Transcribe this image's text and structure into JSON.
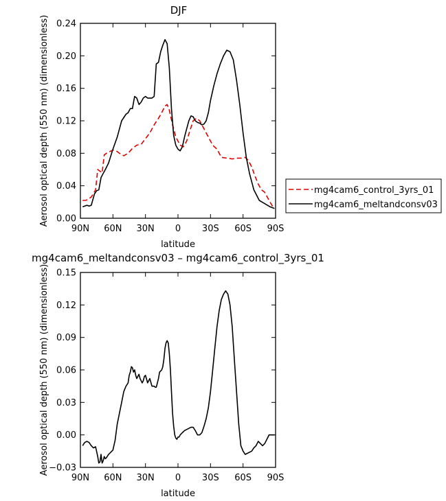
{
  "chart_data": [
    {
      "type": "line",
      "title": "DJF",
      "xlabel": "latitude",
      "ylabel": "Aerosol optical depth (550 nm) (dimensionless)",
      "xlim": [
        90,
        -90
      ],
      "ylim": [
        0,
        0.24
      ],
      "xticks": [
        90,
        60,
        30,
        0,
        -30,
        -60,
        -90
      ],
      "xtick_labels": [
        "90N",
        "60N",
        "30N",
        "0",
        "30S",
        "60S",
        "90S"
      ],
      "yticks": [
        0,
        0.04,
        0.08,
        0.12,
        0.16,
        0.2,
        0.24
      ],
      "ytick_labels": [
        "0.00",
        "0.04",
        "0.08",
        "0.12",
        "0.16",
        "0.20",
        "0.24"
      ],
      "legend_position": "outside-right",
      "series": [
        {
          "name": "mg4cam6_control_3yrs_01",
          "color": "#e00000",
          "dash": "dashed",
          "x": [
            88,
            85,
            80,
            76,
            74,
            72,
            70,
            68,
            66,
            63,
            60,
            57,
            54,
            50,
            46,
            42,
            38,
            34,
            30,
            26,
            22,
            18,
            15,
            12,
            10,
            8,
            5,
            2,
            0,
            -2,
            -5,
            -8,
            -11,
            -14,
            -17,
            -20,
            -24,
            -28,
            -32,
            -36,
            -40,
            -45,
            -50,
            -55,
            -60,
            -62,
            -65,
            -68,
            -71,
            -74,
            -77,
            -80,
            -84,
            -88
          ],
          "y": [
            0.022,
            0.022,
            0.026,
            0.035,
            0.06,
            0.058,
            0.056,
            0.078,
            0.08,
            0.082,
            0.084,
            0.083,
            0.08,
            0.077,
            0.08,
            0.086,
            0.09,
            0.091,
            0.098,
            0.105,
            0.115,
            0.123,
            0.13,
            0.138,
            0.14,
            0.133,
            0.115,
            0.1,
            0.095,
            0.09,
            0.088,
            0.095,
            0.108,
            0.12,
            0.123,
            0.12,
            0.11,
            0.1,
            0.09,
            0.085,
            0.075,
            0.074,
            0.073,
            0.074,
            0.074,
            0.075,
            0.071,
            0.063,
            0.052,
            0.042,
            0.035,
            0.032,
            0.022,
            0.013
          ]
        },
        {
          "name": "mg4cam6_meltandconsv03",
          "color": "#000000",
          "dash": "solid",
          "x": [
            88,
            86,
            84,
            82,
            80,
            77,
            75,
            73,
            71,
            69,
            67,
            64,
            60,
            56,
            52,
            48,
            46,
            44,
            42,
            40,
            38,
            36,
            34,
            32,
            30,
            28,
            26,
            24,
            22,
            20,
            18,
            16,
            14,
            12,
            10,
            8,
            6,
            4,
            2,
            0,
            -2,
            -4,
            -6,
            -8,
            -10,
            -12,
            -14,
            -16,
            -18,
            -20,
            -22,
            -24,
            -26,
            -28,
            -30,
            -33,
            -36,
            -39,
            -42,
            -45,
            -48,
            -51,
            -54,
            -57,
            -60,
            -63,
            -66,
            -70,
            -75,
            -80,
            -85,
            -89
          ],
          "y": [
            0.014,
            0.015,
            0.016,
            0.015,
            0.016,
            0.03,
            0.034,
            0.035,
            0.05,
            0.055,
            0.06,
            0.068,
            0.085,
            0.1,
            0.12,
            0.128,
            0.13,
            0.135,
            0.135,
            0.15,
            0.148,
            0.14,
            0.143,
            0.148,
            0.15,
            0.148,
            0.148,
            0.148,
            0.15,
            0.19,
            0.192,
            0.205,
            0.213,
            0.22,
            0.215,
            0.185,
            0.135,
            0.102,
            0.09,
            0.085,
            0.083,
            0.088,
            0.1,
            0.11,
            0.12,
            0.126,
            0.125,
            0.12,
            0.118,
            0.117,
            0.115,
            0.116,
            0.12,
            0.13,
            0.145,
            0.163,
            0.178,
            0.19,
            0.2,
            0.207,
            0.205,
            0.195,
            0.17,
            0.14,
            0.105,
            0.075,
            0.055,
            0.035,
            0.022,
            0.018,
            0.014,
            0.012
          ]
        }
      ]
    },
    {
      "type": "line",
      "title": "mg4cam6_meltandconsv03 – mg4cam6_control_3yrs_01",
      "xlabel": "latitude",
      "ylabel": "Aerosol optical depth (550 nm) (dimensionless)",
      "xlim": [
        90,
        -90
      ],
      "ylim": [
        -0.03,
        0.15
      ],
      "xticks": [
        90,
        60,
        30,
        0,
        -30,
        -60,
        -90
      ],
      "xtick_labels": [
        "90N",
        "60N",
        "30N",
        "0",
        "30S",
        "60S",
        "90S"
      ],
      "yticks": [
        -0.03,
        0,
        0.03,
        0.06,
        0.09,
        0.12,
        0.15
      ],
      "ytick_labels": [
        "−0.03",
        "0.00",
        "0.03",
        "0.06",
        "0.09",
        "0.12",
        "0.15"
      ],
      "series": [
        {
          "color": "#000000",
          "dash": "solid",
          "x": [
            88,
            86,
            84,
            82,
            80,
            78,
            76,
            74,
            73,
            72,
            71,
            70,
            69,
            68,
            67,
            66,
            64,
            62,
            60,
            58,
            56,
            54,
            52,
            50,
            48,
            46,
            45,
            44,
            43,
            42,
            41,
            40,
            39,
            38,
            37,
            36,
            35,
            34,
            33,
            32,
            31,
            30,
            28,
            26,
            24,
            22,
            21,
            20,
            19,
            18,
            17,
            16,
            15,
            14,
            13,
            12,
            11,
            10,
            9,
            8,
            7,
            6,
            5,
            4,
            3,
            2,
            1,
            0,
            -1,
            -2,
            -4,
            -6,
            -8,
            -10,
            -12,
            -14,
            -16,
            -18,
            -20,
            -22,
            -24,
            -26,
            -28,
            -30,
            -32,
            -34,
            -36,
            -38,
            -40,
            -42,
            -44,
            -46,
            -48,
            -50,
            -52,
            -54,
            -56,
            -58,
            -60,
            -62,
            -64,
            -66,
            -68,
            -70,
            -72,
            -74,
            -76,
            -78,
            -80,
            -82,
            -84,
            -86,
            -88,
            -89
          ],
          "y": [
            -0.01,
            -0.007,
            -0.006,
            -0.007,
            -0.01,
            -0.012,
            -0.011,
            -0.02,
            -0.026,
            -0.025,
            -0.018,
            -0.026,
            -0.024,
            -0.02,
            -0.022,
            -0.021,
            -0.018,
            -0.016,
            -0.014,
            -0.005,
            0.01,
            0.02,
            0.03,
            0.04,
            0.045,
            0.048,
            0.055,
            0.058,
            0.063,
            0.062,
            0.058,
            0.06,
            0.055,
            0.052,
            0.054,
            0.056,
            0.052,
            0.05,
            0.048,
            0.05,
            0.054,
            0.055,
            0.048,
            0.052,
            0.045,
            0.045,
            0.044,
            0.044,
            0.048,
            0.052,
            0.058,
            0.059,
            0.06,
            0.063,
            0.07,
            0.08,
            0.085,
            0.087,
            0.085,
            0.075,
            0.06,
            0.04,
            0.02,
            0.008,
            0.0,
            -0.003,
            -0.004,
            -0.002,
            -0.002,
            0.0,
            0.002,
            0.004,
            0.005,
            0.006,
            0.007,
            0.007,
            0.004,
            0.0,
            0.0,
            0.002,
            0.008,
            0.015,
            0.025,
            0.04,
            0.06,
            0.08,
            0.1,
            0.115,
            0.125,
            0.13,
            0.133,
            0.13,
            0.12,
            0.1,
            0.07,
            0.04,
            0.01,
            -0.01,
            -0.015,
            -0.018,
            -0.017,
            -0.016,
            -0.015,
            -0.012,
            -0.01,
            -0.006,
            -0.008,
            -0.01,
            -0.008,
            -0.004,
            0.0,
            0.0,
            0.0,
            0.0
          ]
        }
      ]
    }
  ]
}
